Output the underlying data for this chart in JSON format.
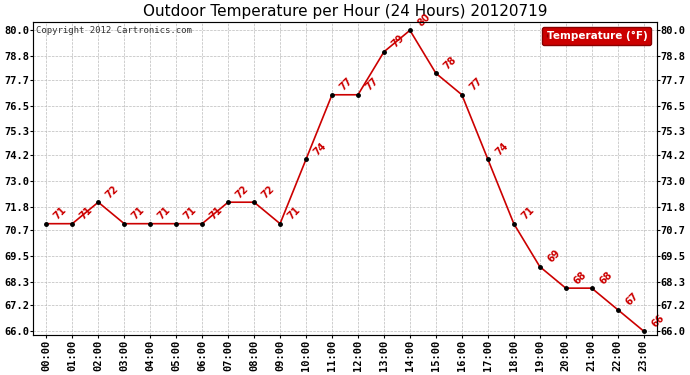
{
  "title": "Outdoor Temperature per Hour (24 Hours) 20120719",
  "copyright_text": "Copyright 2012 Cartronics.com",
  "legend_label": "Temperature (°F)",
  "hours": [
    "00:00",
    "01:00",
    "02:00",
    "03:00",
    "04:00",
    "05:00",
    "06:00",
    "07:00",
    "08:00",
    "09:00",
    "10:00",
    "11:00",
    "12:00",
    "13:00",
    "14:00",
    "15:00",
    "16:00",
    "17:00",
    "18:00",
    "19:00",
    "20:00",
    "21:00",
    "22:00",
    "23:00"
  ],
  "temperatures": [
    71,
    71,
    72,
    71,
    71,
    71,
    71,
    72,
    72,
    71,
    74,
    77,
    77,
    79,
    80,
    78,
    77,
    74,
    71,
    69,
    68,
    68,
    67,
    66
  ],
  "line_color": "#cc0000",
  "marker_color": "#000000",
  "label_color": "#cc0000",
  "background_color": "#ffffff",
  "grid_color": "#bbbbbb",
  "ylim_min": 65.8,
  "ylim_max": 80.4,
  "yticks": [
    66.0,
    67.2,
    68.3,
    69.5,
    70.7,
    71.8,
    73.0,
    74.2,
    75.3,
    76.5,
    77.7,
    78.8,
    80.0
  ],
  "title_fontsize": 11,
  "tick_fontsize": 7.5,
  "legend_bg": "#cc0000",
  "legend_text_color": "#ffffff"
}
